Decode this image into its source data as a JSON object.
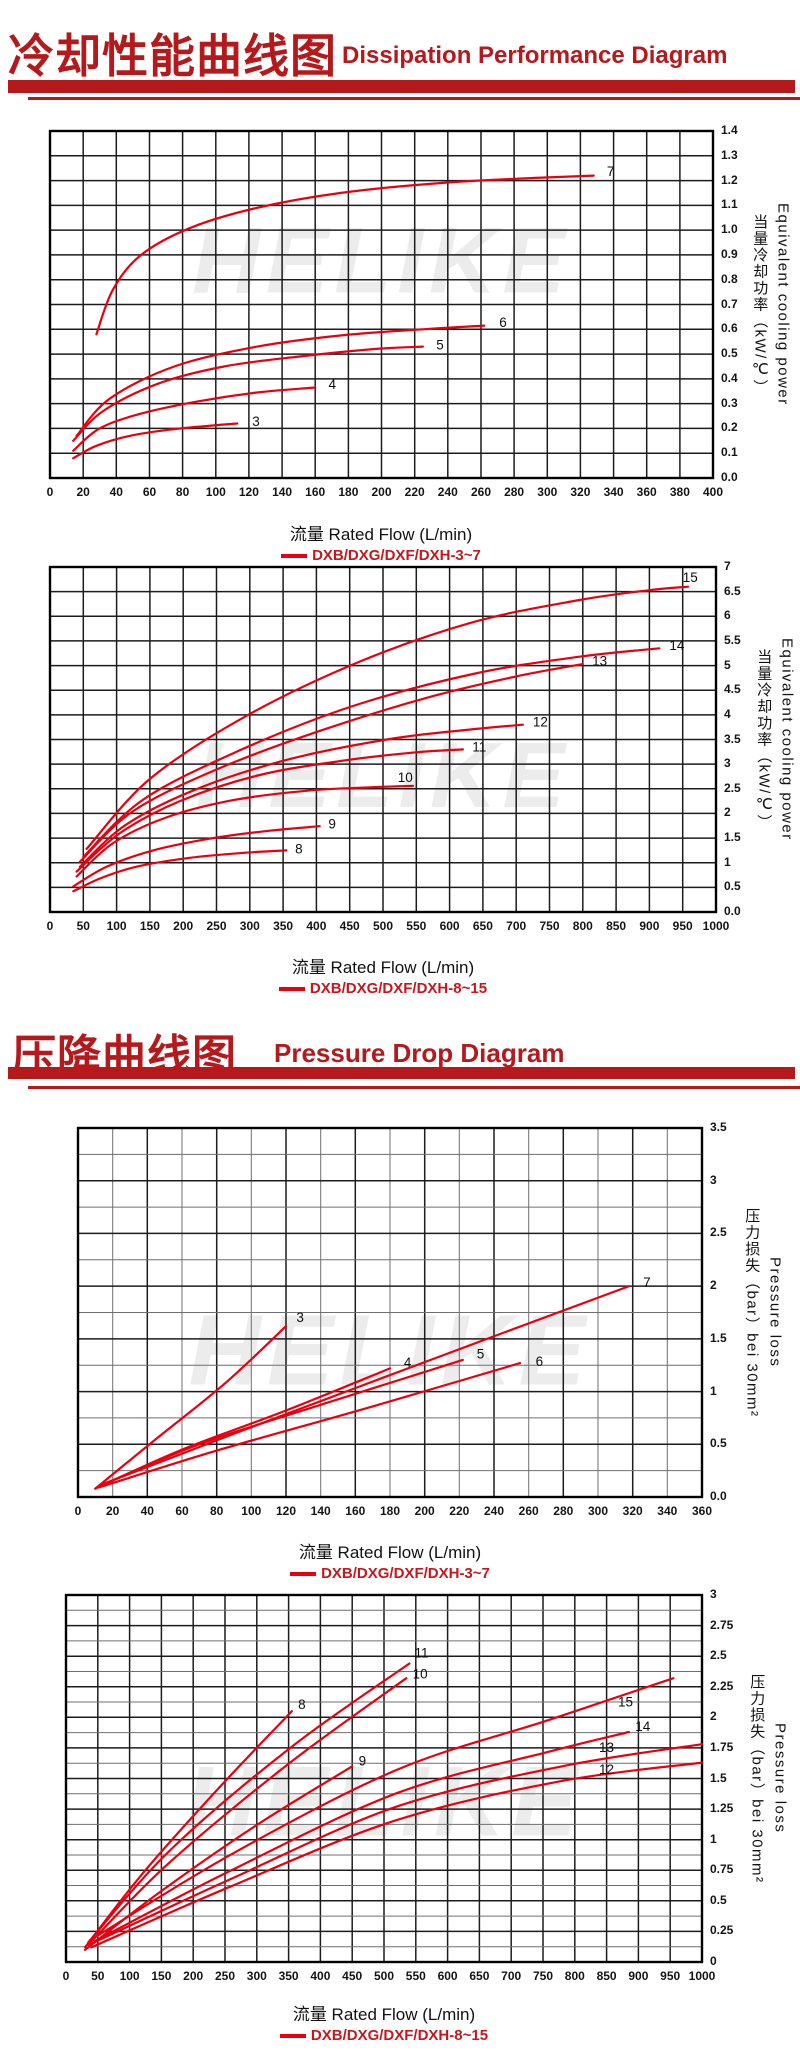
{
  "watermark": "HELIKE",
  "colors": {
    "header_red": "#b5191c",
    "curve_red": "#e8000f",
    "legend_red": "#c8161d",
    "grid_major": "#1c1c1c",
    "grid_minor": "#6f6f6f",
    "text": "#111111",
    "watermark_gray": "#ececec"
  },
  "header1": {
    "title_zh": "冷却性能曲线图",
    "title_en": "Dissipation Performance Diagram"
  },
  "header2": {
    "title_zh": "压降曲线图",
    "title_en": "Pressure Drop Diagram"
  },
  "chart_data": [
    {
      "id": "dissipation-3-7",
      "type": "line",
      "section": "Dissipation Performance Diagram",
      "xlabel": "流量 Rated Flow  (L/min)",
      "ylabel_zh": "当量冷却功率（kW/℃）",
      "ylabel_en": "Equivalent cooling power",
      "legend": "DXB/DXG/DXF/DXH-3~7",
      "xlim": [
        0,
        400
      ],
      "ylim": [
        0,
        1.4
      ],
      "xticks": [
        "0",
        "20",
        "40",
        "60",
        "80",
        "100",
        "120",
        "140",
        "160",
        "180",
        "200",
        "220",
        "240",
        "260",
        "280",
        "300",
        "320",
        "340",
        "360",
        "380",
        "400"
      ],
      "yticks": [
        "1.4",
        "1.3",
        "1.2",
        "1.1",
        "1.0",
        "0.9",
        "0.8",
        "0.7",
        "0.6",
        "0.5",
        "0.4",
        "0.3",
        "0.2",
        "0.1",
        "0.0"
      ],
      "grid": "on",
      "series": [
        {
          "name": "3",
          "label_pos": [
            122,
            0.225
          ],
          "points": [
            [
              14,
              0.08
            ],
            [
              28,
              0.13
            ],
            [
              48,
              0.17
            ],
            [
              72,
              0.195
            ],
            [
              95,
              0.21
            ],
            [
              113,
              0.22
            ]
          ]
        },
        {
          "name": "4",
          "label_pos": [
            168,
            0.375
          ],
          "points": [
            [
              14,
              0.11
            ],
            [
              30,
              0.2
            ],
            [
              55,
              0.26
            ],
            [
              90,
              0.31
            ],
            [
              125,
              0.345
            ],
            [
              160,
              0.365
            ]
          ]
        },
        {
          "name": "5",
          "label_pos": [
            233,
            0.535
          ],
          "points": [
            [
              14,
              0.15
            ],
            [
              32,
              0.27
            ],
            [
              65,
              0.38
            ],
            [
              105,
              0.45
            ],
            [
              150,
              0.49
            ],
            [
              195,
              0.52
            ],
            [
              225,
              0.53
            ]
          ]
        },
        {
          "name": "6",
          "label_pos": [
            271,
            0.625
          ],
          "points": [
            [
              16,
              0.17
            ],
            [
              36,
              0.32
            ],
            [
              75,
              0.45
            ],
            [
              125,
              0.53
            ],
            [
              175,
              0.575
            ],
            [
              225,
              0.6
            ],
            [
              262,
              0.615
            ]
          ]
        },
        {
          "name": "7",
          "label_pos": [
            336,
            1.235
          ],
          "points": [
            [
              28,
              0.58
            ],
            [
              38,
              0.76
            ],
            [
              55,
              0.9
            ],
            [
              85,
              1.01
            ],
            [
              125,
              1.09
            ],
            [
              175,
              1.15
            ],
            [
              235,
              1.19
            ],
            [
              290,
              1.21
            ],
            [
              328,
              1.22
            ]
          ]
        }
      ]
    },
    {
      "id": "dissipation-8-15",
      "type": "line",
      "section": "Dissipation Performance Diagram",
      "xlabel": "流量 Rated Flow  (L/min)",
      "ylabel_zh": "当量冷却功率（kW/℃）",
      "ylabel_en": "Equivalent cooling power",
      "legend": "DXB/DXG/DXF/DXH-8~15",
      "xlim": [
        0,
        1000
      ],
      "ylim": [
        0,
        7
      ],
      "xticks": [
        "0",
        "50",
        "100",
        "150",
        "200",
        "250",
        "300",
        "350",
        "400",
        "450",
        "500",
        "550",
        "600",
        "650",
        "700",
        "750",
        "800",
        "850",
        "900",
        "950",
        "1000"
      ],
      "yticks": [
        "7",
        "6.5",
        "6",
        "5.5",
        "5",
        "4.5",
        "4",
        "3.5",
        "3",
        "2.5",
        "2",
        "1.5",
        "1",
        "0.5",
        "0.0"
      ],
      "grid": "on",
      "series": [
        {
          "name": "8",
          "label_pos": [
            368,
            1.27
          ],
          "points": [
            [
              35,
              0.42
            ],
            [
              75,
              0.68
            ],
            [
              130,
              0.92
            ],
            [
              210,
              1.1
            ],
            [
              290,
              1.2
            ],
            [
              355,
              1.25
            ]
          ]
        },
        {
          "name": "9",
          "label_pos": [
            418,
            1.78
          ],
          "points": [
            [
              35,
              0.52
            ],
            [
              85,
              0.92
            ],
            [
              155,
              1.25
            ],
            [
              245,
              1.5
            ],
            [
              330,
              1.65
            ],
            [
              405,
              1.74
            ]
          ]
        },
        {
          "name": "10",
          "label_pos": [
            522,
            2.72
          ],
          "points": [
            [
              40,
              0.72
            ],
            [
              95,
              1.4
            ],
            [
              175,
              1.92
            ],
            [
              275,
              2.27
            ],
            [
              385,
              2.46
            ],
            [
              480,
              2.53
            ],
            [
              545,
              2.56
            ]
          ]
        },
        {
          "name": "11",
          "label_pos": [
            634,
            3.34
          ],
          "points": [
            [
              40,
              0.82
            ],
            [
              105,
              1.6
            ],
            [
              195,
              2.25
            ],
            [
              315,
              2.78
            ],
            [
              445,
              3.08
            ],
            [
              550,
              3.24
            ],
            [
              620,
              3.3
            ]
          ]
        },
        {
          "name": "12",
          "label_pos": [
            725,
            3.84
          ],
          "points": [
            [
              45,
              0.92
            ],
            [
              115,
              1.78
            ],
            [
              225,
              2.52
            ],
            [
              365,
              3.12
            ],
            [
              515,
              3.52
            ],
            [
              630,
              3.7
            ],
            [
              710,
              3.8
            ]
          ]
        },
        {
          "name": "13",
          "label_pos": [
            814,
            5.08
          ],
          "points": [
            [
              45,
              1.02
            ],
            [
              125,
              2.05
            ],
            [
              255,
              2.92
            ],
            [
              415,
              3.72
            ],
            [
              575,
              4.38
            ],
            [
              700,
              4.78
            ],
            [
              800,
              5.03
            ]
          ]
        },
        {
          "name": "14",
          "label_pos": [
            930,
            5.4
          ],
          "points": [
            [
              50,
              1.12
            ],
            [
              140,
              2.28
            ],
            [
              285,
              3.28
            ],
            [
              455,
              4.18
            ],
            [
              635,
              4.83
            ],
            [
              795,
              5.18
            ],
            [
              915,
              5.35
            ]
          ]
        },
        {
          "name": "15",
          "label_pos": [
            950,
            6.78
          ],
          "points": [
            [
              55,
              1.28
            ],
            [
              150,
              2.7
            ],
            [
              295,
              3.98
            ],
            [
              465,
              5.08
            ],
            [
              635,
              5.88
            ],
            [
              795,
              6.33
            ],
            [
              900,
              6.53
            ],
            [
              958,
              6.6
            ]
          ]
        }
      ]
    },
    {
      "id": "pressure-drop-3-7",
      "type": "line",
      "section": "Pressure Drop Diagram",
      "xlabel": "流量 Rated Flow  (L/min)",
      "ylabel_zh": "压力损失（bar）bei 30mm²",
      "ylabel_en": "Pressure loss",
      "legend": "DXB/DXG/DXF/DXH-3~7",
      "xlim": [
        0,
        360
      ],
      "ylim": [
        0,
        3.5
      ],
      "xticks": [
        "0",
        "20",
        "40",
        "60",
        "80",
        "100",
        "120",
        "140",
        "160",
        "180",
        "200",
        "220",
        "240",
        "260",
        "280",
        "300",
        "320",
        "340",
        "360"
      ],
      "yticks": [
        "3.5",
        "3",
        "2.5",
        "2",
        "1.5",
        "1",
        "0.5",
        "0.0"
      ],
      "grid": "on",
      "series": [
        {
          "name": "3",
          "label_pos": [
            126,
            1.7
          ],
          "points": [
            [
              10,
              0.08
            ],
            [
              45,
              0.55
            ],
            [
              85,
              1.08
            ],
            [
              120,
              1.62
            ]
          ]
        },
        {
          "name": "4",
          "label_pos": [
            188,
            1.27
          ],
          "points": [
            [
              10,
              0.08
            ],
            [
              60,
              0.45
            ],
            [
              120,
              0.82
            ],
            [
              180,
              1.22
            ]
          ]
        },
        {
          "name": "5",
          "label_pos": [
            230,
            1.35
          ],
          "points": [
            [
              12,
              0.1
            ],
            [
              70,
              0.5
            ],
            [
              145,
              0.9
            ],
            [
              222,
              1.3
            ]
          ]
        },
        {
          "name": "6",
          "label_pos": [
            264,
            1.28
          ],
          "points": [
            [
              12,
              0.09
            ],
            [
              80,
              0.44
            ],
            [
              168,
              0.85
            ],
            [
              255,
              1.27
            ]
          ]
        },
        {
          "name": "7",
          "label_pos": [
            326,
            2.03
          ],
          "points": [
            [
              14,
              0.12
            ],
            [
              90,
              0.6
            ],
            [
              200,
              1.28
            ],
            [
              318,
              2.0
            ]
          ]
        }
      ]
    },
    {
      "id": "pressure-drop-8-15",
      "type": "line",
      "section": "Pressure Drop Diagram",
      "xlabel": "流量 Rated Flow  (L/min)",
      "ylabel_zh": "压力损失（bar）bei 30mm²",
      "ylabel_en": "Pressure loss",
      "legend": "DXB/DXG/DXF/DXH-8~15",
      "xlim": [
        0,
        1000
      ],
      "ylim": [
        0,
        3
      ],
      "xticks": [
        "0",
        "50",
        "100",
        "150",
        "200",
        "250",
        "300",
        "350",
        "400",
        "450",
        "500",
        "550",
        "600",
        "650",
        "700",
        "750",
        "800",
        "850",
        "900",
        "950",
        "1000"
      ],
      "yticks": [
        "3",
        "2.75",
        "2.5",
        "2.25",
        "2",
        "1.75",
        "1.5",
        "1.25",
        "1",
        "0.75",
        "0.5",
        "0.25",
        "0"
      ],
      "grid": "on",
      "series": [
        {
          "name": "8",
          "label_pos": [
            365,
            2.1
          ],
          "points": [
            [
              30,
              0.12
            ],
            [
              120,
              0.72
            ],
            [
              240,
              1.42
            ],
            [
              355,
              2.05
            ]
          ]
        },
        {
          "name": "9",
          "label_pos": [
            460,
            1.64
          ],
          "points": [
            [
              30,
              0.1
            ],
            [
              150,
              0.58
            ],
            [
              300,
              1.12
            ],
            [
              450,
              1.6
            ]
          ]
        },
        {
          "name": "10",
          "label_pos": [
            545,
            2.35
          ],
          "points": [
            [
              35,
              0.14
            ],
            [
              160,
              0.8
            ],
            [
              350,
              1.62
            ],
            [
              535,
              2.32
            ]
          ]
        },
        {
          "name": "11",
          "label_pos": [
            548,
            2.52
          ],
          "points": [
            [
              35,
              0.16
            ],
            [
              165,
              0.92
            ],
            [
              355,
              1.76
            ],
            [
              540,
              2.44
            ]
          ]
        },
        {
          "name": "12",
          "label_pos": [
            838,
            1.57
          ],
          "points": [
            [
              40,
              0.12
            ],
            [
              260,
              0.62
            ],
            [
              520,
              1.16
            ],
            [
              780,
              1.48
            ],
            [
              1000,
              1.63
            ]
          ]
        },
        {
          "name": "13",
          "label_pos": [
            838,
            1.75
          ],
          "points": [
            [
              40,
              0.15
            ],
            [
              260,
              0.68
            ],
            [
              520,
              1.27
            ],
            [
              780,
              1.6
            ],
            [
              1000,
              1.78
            ]
          ]
        },
        {
          "name": "14",
          "label_pos": [
            895,
            1.92
          ],
          "points": [
            [
              45,
              0.17
            ],
            [
              260,
              0.75
            ],
            [
              520,
              1.38
            ],
            [
              760,
              1.72
            ],
            [
              885,
              1.88
            ]
          ]
        },
        {
          "name": "15",
          "label_pos": [
            868,
            2.12
          ],
          "points": [
            [
              45,
              0.2
            ],
            [
              260,
              0.88
            ],
            [
              520,
              1.57
            ],
            [
              760,
              1.98
            ],
            [
              955,
              2.32
            ]
          ]
        }
      ]
    }
  ]
}
